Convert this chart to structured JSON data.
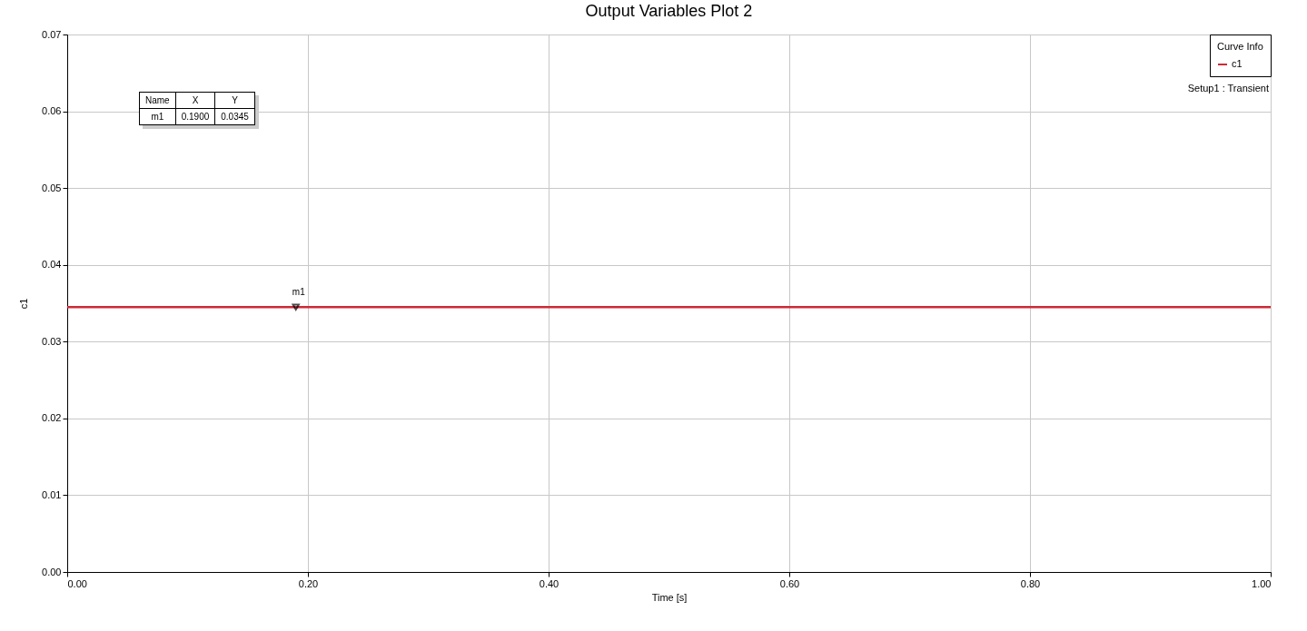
{
  "chart_data": {
    "type": "line",
    "title": "Output Variables Plot 2",
    "xlabel": "Time [s]",
    "ylabel": "c1",
    "legend_title": "Curve Info",
    "x": [
      0,
      1
    ],
    "series": [
      {
        "name": "c1",
        "color": "#cc2b36",
        "values": [
          0.0345,
          0.0345
        ]
      },
      {
        "type": "scatter",
        "marker": "triangle",
        "color": "#000000",
        "x": [
          0.19
        ],
        "values": [
          0.0345
        ]
      }
    ],
    "xlim": [
      0,
      1
    ],
    "xticks": [
      {
        "value": 0,
        "label": "0.00"
      },
      {
        "value": 0.2,
        "label": "0.20"
      },
      {
        "value": 0.4,
        "label": "0.40"
      },
      {
        "value": 0.6,
        "label": "0.60"
      },
      {
        "value": 0.8,
        "label": "0.80"
      },
      {
        "value": 1,
        "label": "1.00"
      }
    ],
    "ylim": [
      0,
      0.07
    ],
    "yticks": [
      {
        "value": 0,
        "label": "0.00"
      },
      {
        "value": 0.01,
        "label": "0.01"
      },
      {
        "value": 0.02,
        "label": "0.02"
      },
      {
        "value": 0.03,
        "label": "0.03"
      },
      {
        "value": 0.04,
        "label": "0.04"
      },
      {
        "value": 0.05,
        "label": "0.05"
      },
      {
        "value": 0.06,
        "label": "0.06"
      },
      {
        "value": 0.07,
        "label": "0.07"
      }
    ],
    "grid": true,
    "legend": "top right",
    "marker": "none",
    "line_style": "solid",
    "annotations": [
      {
        "text": "m1",
        "x": 0.19,
        "y": 0.0345
      },
      "Name",
      "X",
      "Y",
      "m1",
      "0.1900",
      "0.0345",
      "Setup1 : Transient"
    ]
  }
}
